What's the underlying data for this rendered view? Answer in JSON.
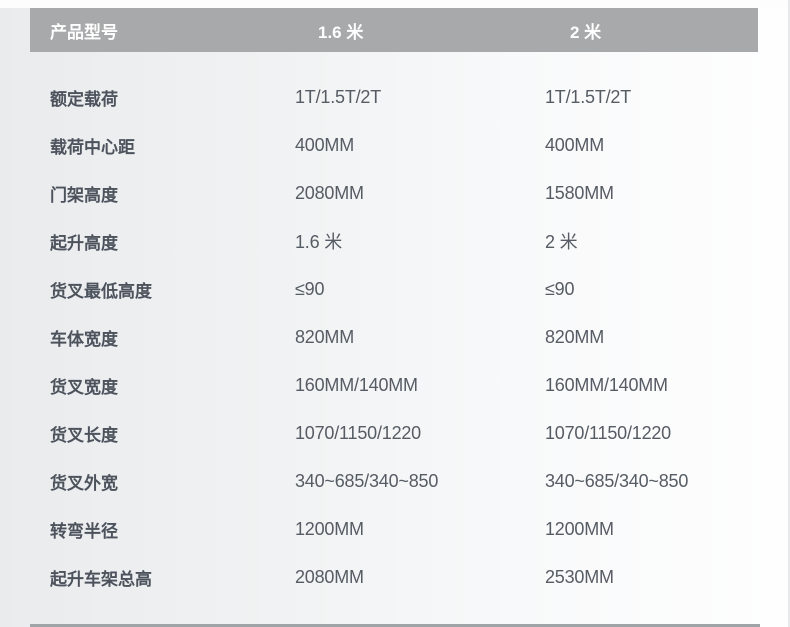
{
  "table": {
    "header": {
      "label": "产品型号",
      "col1": "1.6 米",
      "col2": "2 米"
    },
    "rows": [
      {
        "label": "额定载荷",
        "v1": "1T/1.5T/2T",
        "v2": "1T/1.5T/2T"
      },
      {
        "label": "载荷中心距",
        "v1": "400MM",
        "v2": "400MM"
      },
      {
        "label": "门架高度",
        "v1": "2080MM",
        "v2": "1580MM"
      },
      {
        "label": "起升高度",
        "v1": "1.6 米",
        "v2": "2 米"
      },
      {
        "label": "货叉最低高度",
        "v1": "≤90",
        "v2": "≤90"
      },
      {
        "label": "车体宽度",
        "v1": "820MM",
        "v2": "820MM"
      },
      {
        "label": "货叉宽度",
        "v1": "160MM/140MM",
        "v2": "160MM/140MM"
      },
      {
        "label": "货叉长度",
        "v1": "1070/1150/1220",
        "v2": "1070/1150/1220"
      },
      {
        "label": "货叉外宽",
        "v1": "340~685/340~850",
        "v2": "340~685/340~850"
      },
      {
        "label": "转弯半径",
        "v1": "1200MM",
        "v2": "1200MM"
      },
      {
        "label": "起升车架总高",
        "v1": "2080MM",
        "v2": "2530MM"
      }
    ]
  },
  "colors": {
    "header_bg": "#a8a9aa",
    "header_text": "#ffffff",
    "label_text": "#4d535c",
    "value_text": "#565c64",
    "page_bg_left": "#e9ebed",
    "page_bg_right": "#fefefe"
  }
}
